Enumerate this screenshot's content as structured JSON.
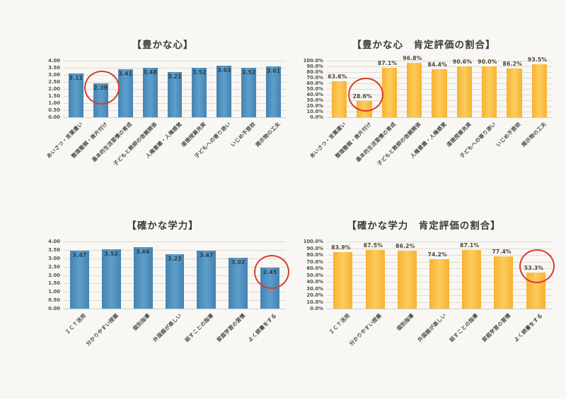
{
  "palette": {
    "paper": "#f8f7f3",
    "red_circle": "#d63c30",
    "blue_bar": "#4a89b8",
    "blue_bar_light": "#5c9fcb",
    "blue_bar_edge": "#4583b1",
    "gold_bar": "#fbbf3d",
    "gold_bar_light": "#fccc5c",
    "gold_bar_edge": "#f7b231"
  },
  "chart_data": [
    {
      "type": "bar",
      "title": "【豊かな心】",
      "categories": [
        "あいさつ・言葉遣い",
        "整理整頓・後片付け",
        "基本的生活習慣の育成",
        "子どもと教師の信頼関係",
        "人権意識・人権感覚",
        "道徳授業充実",
        "子どもへの寄り添い",
        "いじめ不登校",
        "掲示物の工夫"
      ],
      "values": [
        3.11,
        2.39,
        3.41,
        3.48,
        3.21,
        3.52,
        3.63,
        3.52,
        3.61
      ],
      "value_labels": [
        "3.11",
        "2.39",
        "3.41",
        "3.48",
        "3.21",
        "3.52",
        "3.63",
        "3.52",
        "3.61"
      ],
      "ylim": [
        0,
        4
      ],
      "ytick_labels": [
        "4.00",
        "3.50",
        "3.00",
        "2.50",
        "2.00",
        "1.50",
        "1.00",
        "0.50",
        "0.00"
      ],
      "grid": true,
      "legend": "none",
      "bar_color_edge": "#4583b1",
      "bar_color_mid": "#5c9fcb",
      "data_label_position": "inside-end",
      "annotation": {
        "type": "red-circle",
        "index": 1,
        "color": "#d63c30"
      }
    },
    {
      "type": "bar",
      "title": "【豊かな心　肯定評価の割合】",
      "categories": [
        "あいさつ・言葉遣い",
        "整理整頓・後片付け",
        "基本的生活習慣の育成",
        "子どもと教師の信頼関係",
        "人権意識・人権感覚",
        "道徳授業充実",
        "子どもへの寄り添い",
        "いじめ不登校",
        "掲示物の工夫"
      ],
      "values": [
        63.6,
        28.6,
        87.1,
        96.8,
        84.4,
        90.6,
        90.0,
        86.2,
        93.5
      ],
      "value_labels": [
        "63.6%",
        "28.6%",
        "87.1%",
        "96.8%",
        "84.4%",
        "90.6%",
        "90.0%",
        "86.2%",
        "93.5%"
      ],
      "ylim": [
        0,
        100
      ],
      "ytick_labels": [
        "100.0%",
        "90.0%",
        "80.0%",
        "70.0%",
        "60.0%",
        "50.0%",
        "40.0%",
        "30.0%",
        "20.0%",
        "10.0%",
        "0.0%"
      ],
      "grid": true,
      "legend": "none",
      "bar_color_edge": "#f7b231",
      "bar_color_mid": "#fccc5c",
      "data_label_position": "outside-end",
      "annotation": {
        "type": "red-circle",
        "index": 1,
        "color": "#d63c30"
      }
    },
    {
      "type": "bar",
      "title": "【確かな学力】",
      "categories": [
        "ＩＣＴ活用",
        "分かりやすい授業",
        "個別指導",
        "外国語が楽しい",
        "話すことの指導",
        "家庭学習の習慣",
        "よく読書をする"
      ],
      "values": [
        3.47,
        3.52,
        3.66,
        3.23,
        3.47,
        3.02,
        2.45
      ],
      "value_labels": [
        "3.47",
        "3.52",
        "3.66",
        "3.23",
        "3.47",
        "3.02",
        "2.45"
      ],
      "ylim": [
        0,
        4
      ],
      "ytick_labels": [
        "4.00",
        "3.50",
        "3.00",
        "2.50",
        "2.00",
        "1.50",
        "1.00",
        "0.50",
        "0.00"
      ],
      "grid": true,
      "legend": "none",
      "bar_color_edge": "#4583b1",
      "bar_color_mid": "#5c9fcb",
      "data_label_position": "inside-end",
      "annotation": {
        "type": "red-circle",
        "index": 6,
        "color": "#d63c30"
      }
    },
    {
      "type": "bar",
      "title": "【確かな学力　肯定評価の割合】",
      "categories": [
        "ＩＣＴ活用",
        "分かりやすい授業",
        "個別指導",
        "外国語が楽しい",
        "話すことの指導",
        "家庭学習の習慣",
        "よく読書をする"
      ],
      "values": [
        83.9,
        87.5,
        86.2,
        74.2,
        87.1,
        77.4,
        53.3
      ],
      "value_labels": [
        "83.9%",
        "87.5%",
        "86.2%",
        "74.2%",
        "87.1%",
        "77.4%",
        "53.3%"
      ],
      "ylim": [
        0,
        100
      ],
      "ytick_labels": [
        "100.0%",
        "90.0%",
        "80.0%",
        "70.0%",
        "60.0%",
        "50.0%",
        "40.0%",
        "30.0%",
        "20.0%",
        "10.0%",
        "0.0%"
      ],
      "grid": true,
      "legend": "none",
      "bar_color_edge": "#f7b231",
      "bar_color_mid": "#fccc5c",
      "data_label_position": "outside-end",
      "annotation": {
        "type": "red-circle",
        "index": 6,
        "color": "#d63c30"
      }
    }
  ]
}
